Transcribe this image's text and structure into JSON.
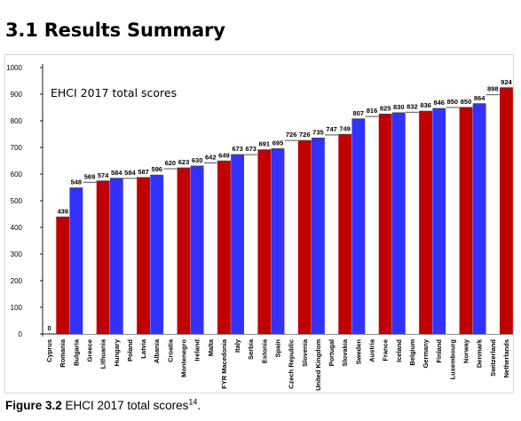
{
  "heading": "3.1 Results Summary",
  "caption": {
    "label": "Figure 3.2",
    "text": "EHCI 2017 total scores",
    "footnote": "14",
    "end": "."
  },
  "colors": {
    "red": "#c00000",
    "blue": "#3232ff",
    "line": "#1a1a1a",
    "frame": "#d9d9d9"
  },
  "chart_data": {
    "type": "bar",
    "title": "EHCI 2017 total scores",
    "ylim": [
      0,
      1000
    ],
    "yticks": [
      0,
      100,
      200,
      300,
      400,
      500,
      600,
      700,
      800,
      900,
      1000
    ],
    "grid": false,
    "legend": "none",
    "categories": [
      "Cyprus",
      "Romania",
      "Bulgaria",
      "Greece",
      "Lithuania",
      "Hungary",
      "Poland",
      "Latvia",
      "Albania",
      "Croatia",
      "Montenegro",
      "Ireland",
      "Malta",
      "FYR Macedonia",
      "Italy",
      "Serbia",
      "Estonia",
      "Spain",
      "Czech Republic",
      "Slovenia",
      "United Kingdom",
      "Portugal",
      "Slovakia",
      "Sweden",
      "Austria",
      "France",
      "Iceland",
      "Belgium",
      "Germany",
      "Finland",
      "Luxembourg",
      "Norway",
      "Denmark",
      "Switzerland",
      "Netherlands"
    ],
    "values": [
      0,
      439,
      548,
      569,
      574,
      584,
      584,
      587,
      596,
      620,
      623,
      630,
      642,
      649,
      673,
      673,
      691,
      695,
      726,
      726,
      735,
      747,
      749,
      807,
      816,
      825,
      830,
      832,
      836,
      846,
      850,
      850,
      864,
      898,
      924
    ],
    "bar_colors": [
      "white",
      "red",
      "blue",
      "white",
      "red",
      "blue",
      "white",
      "red",
      "blue",
      "white",
      "red",
      "blue",
      "white",
      "red",
      "blue",
      "white",
      "red",
      "blue",
      "white",
      "red",
      "blue",
      "white",
      "red",
      "blue",
      "white",
      "red",
      "blue",
      "white",
      "red",
      "blue",
      "white",
      "red",
      "blue",
      "white",
      "red"
    ]
  }
}
